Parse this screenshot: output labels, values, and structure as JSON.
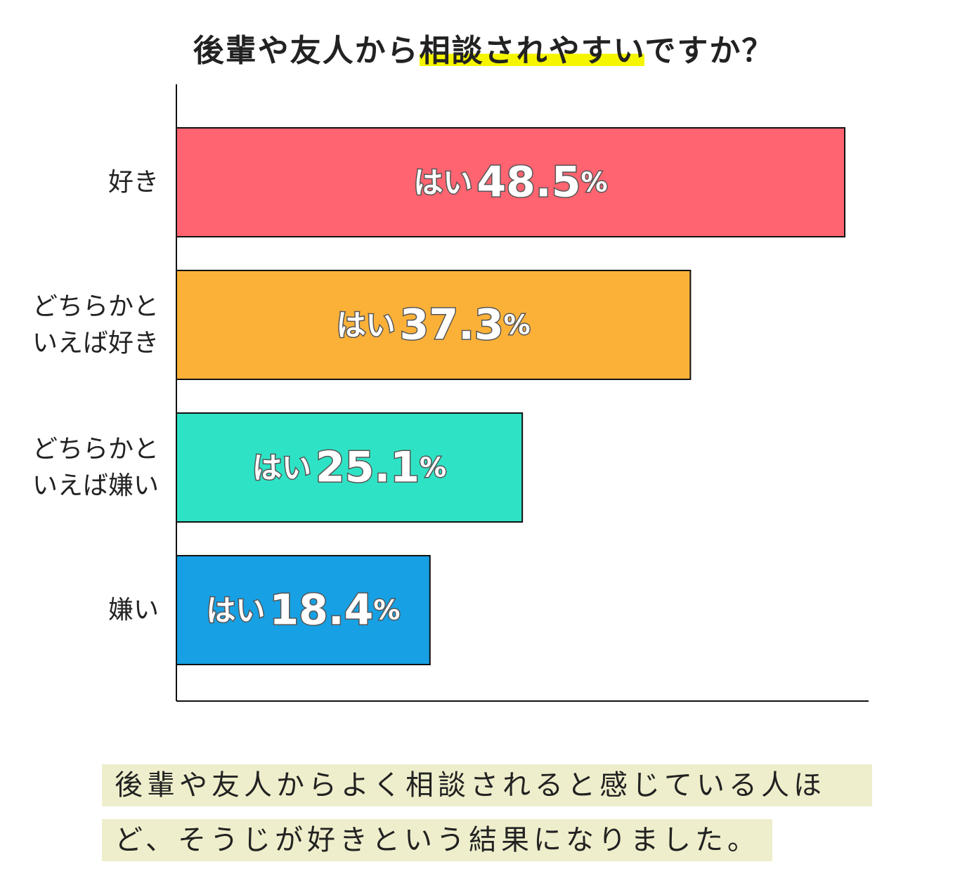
{
  "title": {
    "prefix": "後輩や友人から",
    "highlight": "相談されやすい",
    "suffix": "ですか？"
  },
  "chart_data": {
    "type": "bar",
    "orientation": "horizontal",
    "categories": [
      "好き",
      "どちらかと\nいえば好き",
      "どちらかと\nいえば嫌い",
      "嫌い"
    ],
    "series": [
      {
        "values": [
          48.5,
          37.3,
          25.1,
          18.4
        ]
      }
    ],
    "value_prefix": "はい",
    "value_suffix": "%",
    "colors": [
      "#ff6470",
      "#fbb138",
      "#2ee3c5",
      "#17a0e3"
    ],
    "xlim": [
      0,
      48.5
    ]
  },
  "caption": {
    "line1": "後輩や友人からよく相談されると感じている人ほ",
    "line2": "ど、そうじが好きという結果になりました。"
  }
}
